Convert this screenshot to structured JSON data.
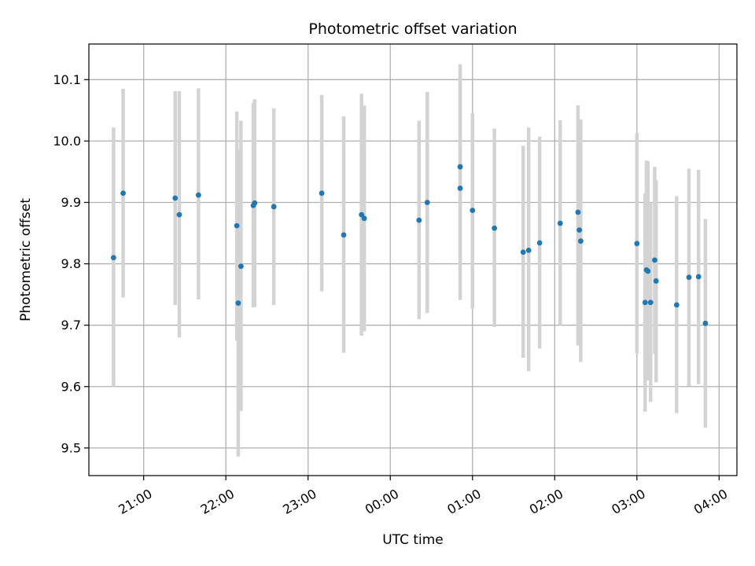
{
  "chart_data": {
    "type": "scatter",
    "title": "Photometric offset variation",
    "xlabel": "UTC time",
    "ylabel": "Photometric offset",
    "xlim": [
      "20:20",
      "04:13"
    ],
    "ylim": [
      9.455,
      10.158
    ],
    "grid": true,
    "x_ticks": [
      "21:00",
      "22:00",
      "23:00",
      "00:00",
      "01:00",
      "02:00",
      "03:00",
      "04:00"
    ],
    "y_ticks": [
      "9.5",
      "9.6",
      "9.7",
      "9.8",
      "9.9",
      "10.0",
      "10.1"
    ],
    "point_color": "#1f77b4",
    "errorbar_color": "#d3d3d3",
    "points": [
      {
        "t": "20:38",
        "y": 9.81,
        "lo": 9.6,
        "hi": 10.022
      },
      {
        "t": "20:45",
        "y": 9.915,
        "lo": 9.745,
        "hi": 10.085
      },
      {
        "t": "21:23",
        "y": 9.907,
        "lo": 9.733,
        "hi": 10.081
      },
      {
        "t": "21:26",
        "y": 9.88,
        "lo": 9.68,
        "hi": 10.081
      },
      {
        "t": "21:40",
        "y": 9.912,
        "lo": 9.742,
        "hi": 10.086
      },
      {
        "t": "22:08",
        "y": 9.862,
        "lo": 9.675,
        "hi": 10.048
      },
      {
        "t": "22:09",
        "y": 9.736,
        "lo": 9.486,
        "hi": 9.987
      },
      {
        "t": "22:11",
        "y": 9.796,
        "lo": 9.56,
        "hi": 10.033
      },
      {
        "t": "22:20",
        "y": 9.895,
        "lo": 9.729,
        "hi": 10.062
      },
      {
        "t": "22:21",
        "y": 9.899,
        "lo": 9.73,
        "hi": 10.068
      },
      {
        "t": "22:35",
        "y": 9.893,
        "lo": 9.733,
        "hi": 10.053
      },
      {
        "t": "23:10",
        "y": 9.915,
        "lo": 9.755,
        "hi": 10.075
      },
      {
        "t": "23:26",
        "y": 9.847,
        "lo": 9.655,
        "hi": 10.04
      },
      {
        "t": "23:39",
        "y": 9.88,
        "lo": 9.683,
        "hi": 10.077
      },
      {
        "t": "23:41",
        "y": 9.874,
        "lo": 9.69,
        "hi": 10.058
      },
      {
        "t": "00:21",
        "y": 9.871,
        "lo": 9.71,
        "hi": 10.033
      },
      {
        "t": "00:27",
        "y": 9.9,
        "lo": 9.72,
        "hi": 10.08
      },
      {
        "t": "00:51",
        "y": 9.958,
        "lo": 9.79,
        "hi": 10.125
      },
      {
        "t": "00:51",
        "y": 9.923,
        "lo": 9.741,
        "hi": 10.105
      },
      {
        "t": "01:00",
        "y": 9.887,
        "lo": 9.727,
        "hi": 10.045
      },
      {
        "t": "01:16",
        "y": 9.858,
        "lo": 9.697,
        "hi": 10.02
      },
      {
        "t": "01:37",
        "y": 9.819,
        "lo": 9.647,
        "hi": 9.992
      },
      {
        "t": "01:41",
        "y": 9.822,
        "lo": 9.625,
        "hi": 10.022
      },
      {
        "t": "01:49",
        "y": 9.834,
        "lo": 9.662,
        "hi": 10.007
      },
      {
        "t": "02:04",
        "y": 9.866,
        "lo": 9.7,
        "hi": 10.034
      },
      {
        "t": "02:17",
        "y": 9.884,
        "lo": 9.667,
        "hi": 10.058
      },
      {
        "t": "02:18",
        "y": 9.855,
        "lo": 9.735,
        "hi": 10.0
      },
      {
        "t": "02:19",
        "y": 9.837,
        "lo": 9.64,
        "hi": 10.035
      },
      {
        "t": "03:00",
        "y": 9.833,
        "lo": 9.654,
        "hi": 10.013
      },
      {
        "t": "03:06",
        "y": 9.737,
        "lo": 9.559,
        "hi": 9.915
      },
      {
        "t": "03:07",
        "y": 9.79,
        "lo": 9.611,
        "hi": 9.968
      },
      {
        "t": "03:08",
        "y": 9.788,
        "lo": 9.61,
        "hi": 9.967
      },
      {
        "t": "03:10",
        "y": 9.737,
        "lo": 9.575,
        "hi": 9.9
      },
      {
        "t": "03:13",
        "y": 9.806,
        "lo": 9.653,
        "hi": 9.958
      },
      {
        "t": "03:14",
        "y": 9.772,
        "lo": 9.607,
        "hi": 9.936
      },
      {
        "t": "03:29",
        "y": 9.733,
        "lo": 9.557,
        "hi": 9.91
      },
      {
        "t": "03:38",
        "y": 9.778,
        "lo": 9.601,
        "hi": 9.955
      },
      {
        "t": "03:45",
        "y": 9.779,
        "lo": 9.604,
        "hi": 9.953
      },
      {
        "t": "03:50",
        "y": 9.703,
        "lo": 9.533,
        "hi": 9.873
      }
    ]
  }
}
